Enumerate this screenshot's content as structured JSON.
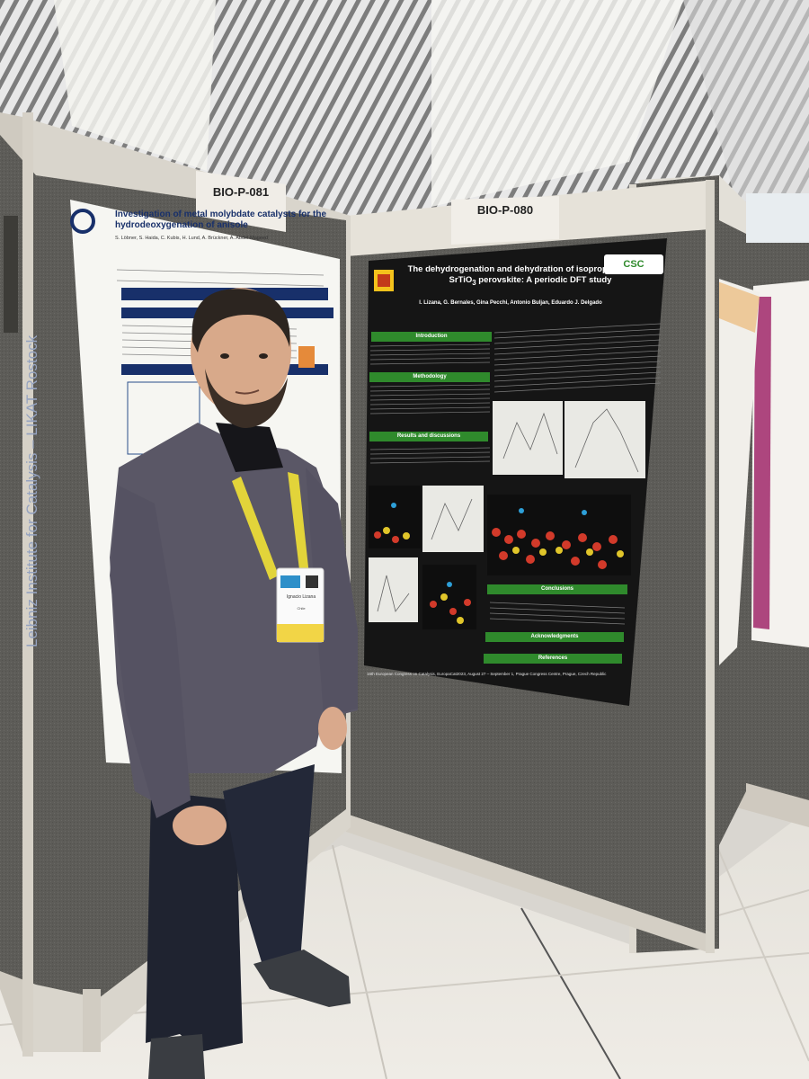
{
  "left_poster": {
    "board_label": "BIO-P-081",
    "title": "Investigation of metal molybdate catalysts for the hydrodeoxygenation of anisole",
    "authors": "S. Löbner, S. Haida, C. Kubis, H. Lund, A. Brückner, A. Abdel-Mageed",
    "institute_vertical": "Leibniz Institute for Catalysis – LIKAT Rostock"
  },
  "right_poster": {
    "board_label": "BIO-P-080",
    "title_main": "The dehydrogenation and dehydration of isopropanol on the SrTiO",
    "title_sub": "3",
    "title_end": " perovskite: A periodic DFT study",
    "authors": "I. Lizana, G. Bernales, Gina Pecchi, Antonio Buljan, Eduardo J. Delgado",
    "logo": "CSC",
    "sections": [
      "Introduction",
      "Methodology",
      "Results and discussions",
      "Conclusions",
      "Acknowledgments",
      "References"
    ],
    "footer": "16th European Congress on Catalysis, EuropaCat2023, August 27 – September 1, Prague Congress Centre, Prague, Czech Republic"
  },
  "badge": {
    "name": "Ignacio Lizana",
    "org": "Chile"
  },
  "colors": {
    "board_fabric": "#5d5c58",
    "poster_background": "#151515",
    "section_green": "#2f8a2c",
    "floor": "#e9e6e0"
  }
}
